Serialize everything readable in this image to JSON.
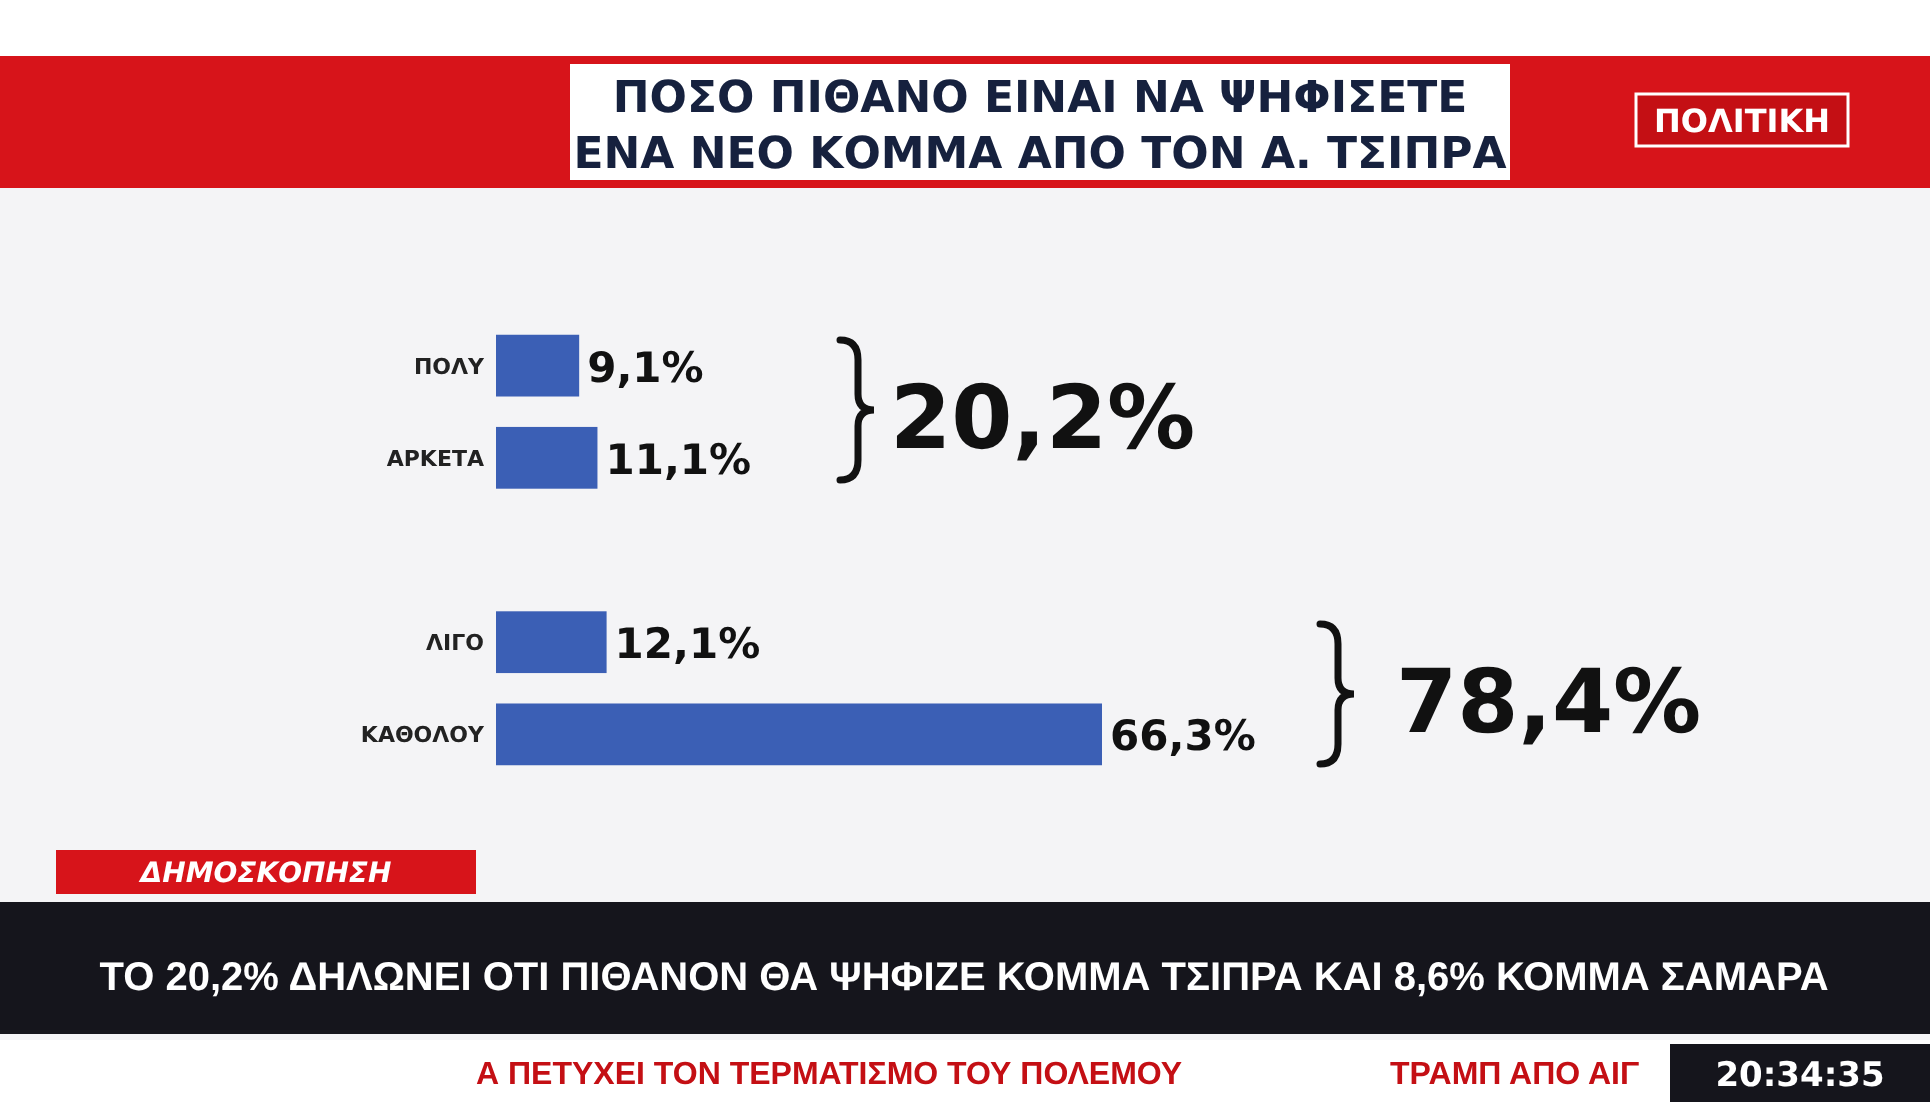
{
  "chart_data": {
    "type": "bar",
    "orientation": "horizontal",
    "title": "ΠΟΣΟ ΠΙΘΑΝΟ ΕΙΝΑΙ ΝΑ ΨΗΦΙΣΕΤΕ ΕΝΑ ΝΕΟ ΚΟΜΜΑ ΑΠΟ ΤΟΝ Α. ΤΣΙΠΡΑ",
    "subtitle": "ΤΟ 20,2% ΔΗΛΩΝΕΙ ΟΤΙ ΠΙΘΑΝΟΝ ΘΑ ΨΗΦΙΖΕ ΚΟΜΜΑ ΤΣΙΠΡΑ ΚΑΙ 8,6% ΚΟΜΜΑ ΣΑΜΑΡΑ",
    "categories": [
      "ΠΟΛΥ",
      "ΑΡΚΕΤΑ",
      null,
      "ΛΙΓΟ",
      "ΚΑΘΟΛΟΥ"
    ],
    "values": [
      9.1,
      11.1,
      null,
      12.1,
      66.3
    ],
    "value_labels": [
      "9,1%",
      "11,1%",
      null,
      "12,1%",
      "66,3%"
    ],
    "color": "#3b5fb5",
    "annotations": [
      "20,2%",
      "78,4%",
      "ΠΟΛΙΤΙΚΗ",
      "ΔΗΜΟΣΚΟΠΗΣΗ",
      "Α ΠΕΤΥΧΕΙ ΤΟΝ ΤΕΡΜΑΤΙΣΜΟ ΤΟΥ ΠΟΛΕΜΟΥ",
      "ΤΡΑΜΠ ΑΠΟ ΑΙΓ",
      "20:34:35"
    ]
  }
}
